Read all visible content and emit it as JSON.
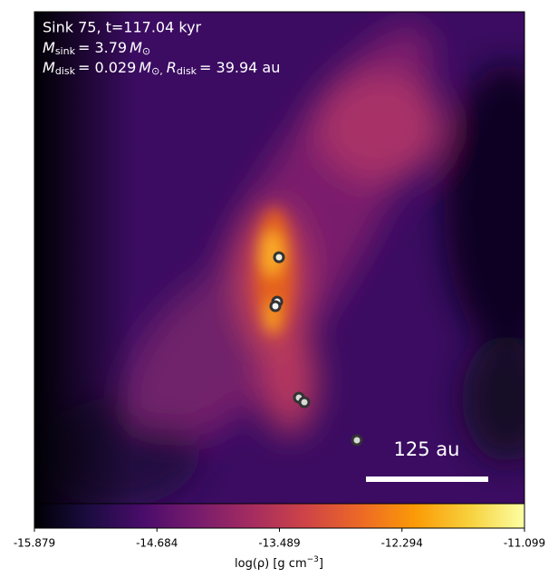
{
  "chart_data": {
    "type": "image",
    "info": {
      "title": "Sink 75, t=117.04 kyr",
      "sink_mass": {
        "symbol": "M",
        "sub": "sink",
        "value": "= 3.79",
        "unit": "M",
        "unit_sub": "⊙"
      },
      "disk": {
        "symbol": "M",
        "sub": "disk",
        "value": "= 0.029",
        "unit": "M",
        "unit_sub": "⊙,",
        "symbol2": "R",
        "sub2": "disk",
        "value2": "= 39.94 au"
      }
    },
    "scale_bar": "125 au",
    "colorbar": {
      "label": {
        "text": "log(ρ) [g cm",
        "sup": "−3",
        "close": "]"
      },
      "colormap": "inferno",
      "lim": [
        -15.879,
        -11.099
      ],
      "ticks": [
        -15.879,
        -14.684,
        -13.489,
        -12.294,
        -11.099
      ]
    }
  }
}
